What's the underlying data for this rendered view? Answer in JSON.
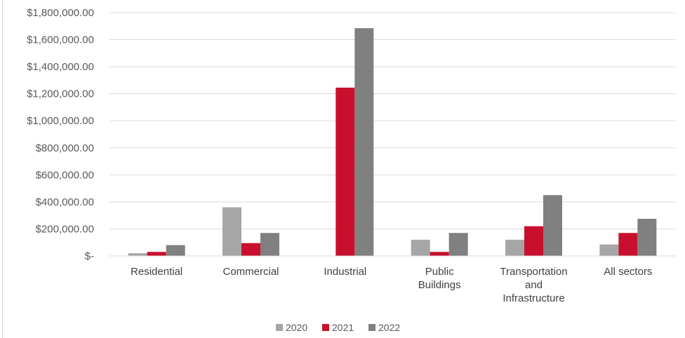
{
  "chart_data": {
    "type": "bar",
    "title": "",
    "xlabel": "",
    "ylabel": "",
    "categories": [
      [
        "Residential"
      ],
      [
        "Commercial"
      ],
      [
        "Industrial"
      ],
      [
        "Public",
        "Buildings"
      ],
      [
        "Transportation",
        "and",
        "Infrastructure"
      ],
      [
        "All sectors"
      ]
    ],
    "series": [
      {
        "name": "2020",
        "color": "#a6a6a6",
        "values": [
          20000,
          360000,
          0,
          120000,
          120000,
          85000
        ]
      },
      {
        "name": "2021",
        "color": "#c8102e",
        "values": [
          30000,
          95000,
          1245000,
          30000,
          220000,
          170000
        ]
      },
      {
        "name": "2022",
        "color": "#808080",
        "values": [
          80000,
          170000,
          1685000,
          170000,
          450000,
          275000
        ]
      }
    ],
    "ylim": [
      0,
      1800000
    ],
    "y_ticks": [
      0,
      200000,
      400000,
      600000,
      800000,
      1000000,
      1200000,
      1400000,
      1600000,
      1800000
    ],
    "y_tick_labels": [
      "$-",
      "$200,000.00",
      "$400,000.00",
      "$600,000.00",
      "$800,000.00",
      "$1,000,000.00",
      "$1,200,000.00",
      "$1,400,000.00",
      "$1,600,000.00",
      "$1,800,000.00"
    ],
    "grid": true,
    "legend_position": "bottom"
  }
}
